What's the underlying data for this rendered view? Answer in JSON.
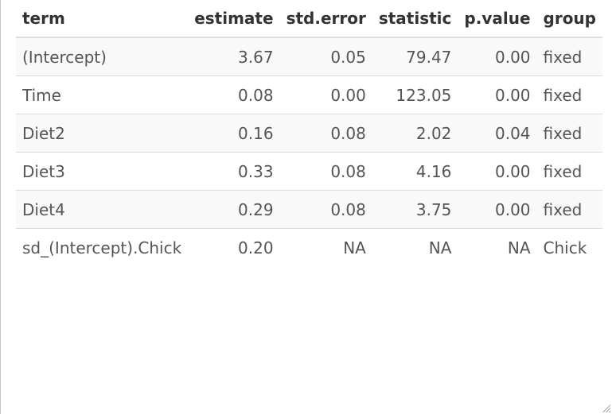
{
  "table": {
    "columns": [
      {
        "label": "term"
      },
      {
        "label": "estimate"
      },
      {
        "label": "std.error"
      },
      {
        "label": "statistic"
      },
      {
        "label": "p.value"
      },
      {
        "label": "group"
      }
    ],
    "rows": [
      {
        "term": "(Intercept)",
        "estimate": "3.67",
        "std_error": "0.05",
        "statistic": "79.47",
        "p_value": "0.00",
        "group": "fixed"
      },
      {
        "term": "Time",
        "estimate": "0.08",
        "std_error": "0.00",
        "statistic": "123.05",
        "p_value": "0.00",
        "group": "fixed"
      },
      {
        "term": "Diet2",
        "estimate": "0.16",
        "std_error": "0.08",
        "statistic": "2.02",
        "p_value": "0.04",
        "group": "fixed"
      },
      {
        "term": "Diet3",
        "estimate": "0.33",
        "std_error": "0.08",
        "statistic": "4.16",
        "p_value": "0.00",
        "group": "fixed"
      },
      {
        "term": "Diet4",
        "estimate": "0.29",
        "std_error": "0.08",
        "statistic": "3.75",
        "p_value": "0.00",
        "group": "fixed"
      },
      {
        "term": "sd_(Intercept).Chick",
        "estimate": "0.20",
        "std_error": "NA",
        "statistic": "NA",
        "p_value": "NA",
        "group": "Chick"
      }
    ]
  }
}
